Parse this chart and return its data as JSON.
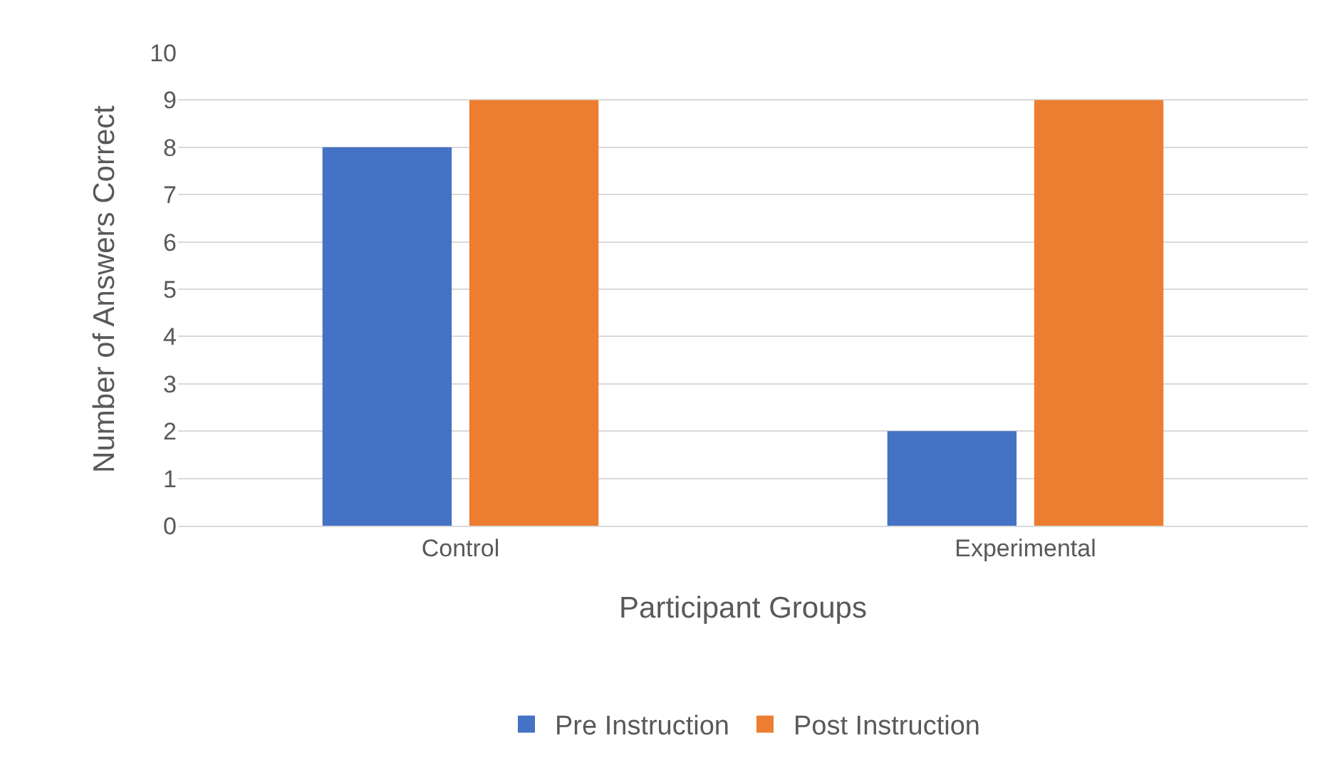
{
  "chart_data": {
    "type": "bar",
    "xlabel": "Participant Groups",
    "ylabel": "Number of Answers Correct",
    "categories": [
      "Control",
      "Experimental"
    ],
    "series": [
      {
        "name": "Pre Instruction",
        "color": "#4472c4",
        "values": [
          8,
          2
        ]
      },
      {
        "name": "Post Instruction",
        "color": "#ed7d31",
        "values": [
          9,
          9
        ]
      }
    ],
    "ylim": [
      0,
      10
    ],
    "yticks": [
      0,
      1,
      2,
      3,
      4,
      5,
      6,
      7,
      8,
      9,
      10
    ],
    "grid": "y",
    "legend": "bottom"
  }
}
